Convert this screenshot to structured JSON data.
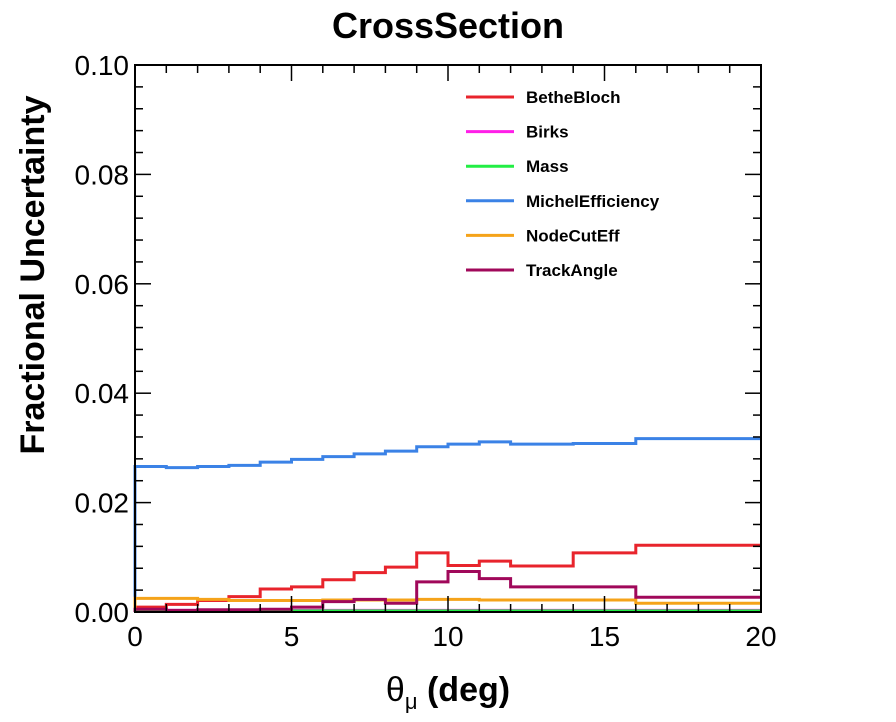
{
  "chart_data": {
    "type": "line",
    "drawstyle": "steps",
    "title": "CrossSection",
    "xlabel_main": "θ",
    "xlabel_sub": "μ",
    "xlabel_unit": " (deg)",
    "ylabel": "Fractional Uncertainty",
    "xlim": [
      0,
      20
    ],
    "ylim": [
      0,
      0.1
    ],
    "x_ticks": [
      0,
      5,
      10,
      15,
      20
    ],
    "x_tick_labels": [
      "0",
      "5",
      "10",
      "15",
      "20"
    ],
    "y_ticks": [
      0,
      0.02,
      0.04,
      0.06,
      0.08,
      0.1
    ],
    "y_tick_labels": [
      "0.00",
      "0.02",
      "0.04",
      "0.06",
      "0.08",
      "0.10"
    ],
    "grid": false,
    "legend_position": "top-right",
    "bin_edges": [
      0,
      1,
      2,
      3,
      4,
      5,
      6,
      7,
      8,
      9,
      10,
      11,
      12,
      14,
      16,
      20
    ],
    "series": [
      {
        "name": "BetheBloch",
        "color": "#e8242c",
        "values": [
          0.0009,
          0.0014,
          0.0021,
          0.0028,
          0.0042,
          0.0046,
          0.0059,
          0.0072,
          0.0082,
          0.0108,
          0.0085,
          0.0093,
          0.0084,
          0.0108,
          0.0122
        ]
      },
      {
        "name": "Birks",
        "color": "#ff1fe8",
        "values": [
          0.0003,
          0.0003,
          0.0003,
          0.0003,
          0.0003,
          0.0003,
          0.0003,
          0.0003,
          0.0003,
          0.0003,
          0.0003,
          0.0003,
          0.0003,
          0.0003,
          0.0003
        ]
      },
      {
        "name": "Mass",
        "color": "#22ee44",
        "values": [
          0.0002,
          0.0002,
          0.0002,
          0.0002,
          0.0002,
          0.0002,
          0.0002,
          0.0002,
          0.0002,
          0.0002,
          0.0002,
          0.0002,
          0.0002,
          0.0002,
          0.0002
        ]
      },
      {
        "name": "MichelEfficiency",
        "color": "#3b82e6",
        "values": [
          0.0266,
          0.0264,
          0.0266,
          0.0268,
          0.0274,
          0.0279,
          0.0284,
          0.0289,
          0.0294,
          0.0302,
          0.0307,
          0.0311,
          0.0307,
          0.0308,
          0.0317
        ]
      },
      {
        "name": "NodeCutEff",
        "color": "#f5a31a",
        "values": [
          0.0025,
          0.0025,
          0.0023,
          0.0021,
          0.0021,
          0.0021,
          0.0022,
          0.0022,
          0.0022,
          0.0023,
          0.0023,
          0.0022,
          0.0022,
          0.0022,
          0.0016
        ]
      },
      {
        "name": "TrackAngle",
        "color": "#a0085a",
        "values": [
          0.0005,
          0.0003,
          0.0004,
          0.0004,
          0.0005,
          0.0009,
          0.0019,
          0.0023,
          0.0016,
          0.0055,
          0.0074,
          0.0061,
          0.0046,
          0.0046,
          0.0027
        ]
      }
    ]
  }
}
